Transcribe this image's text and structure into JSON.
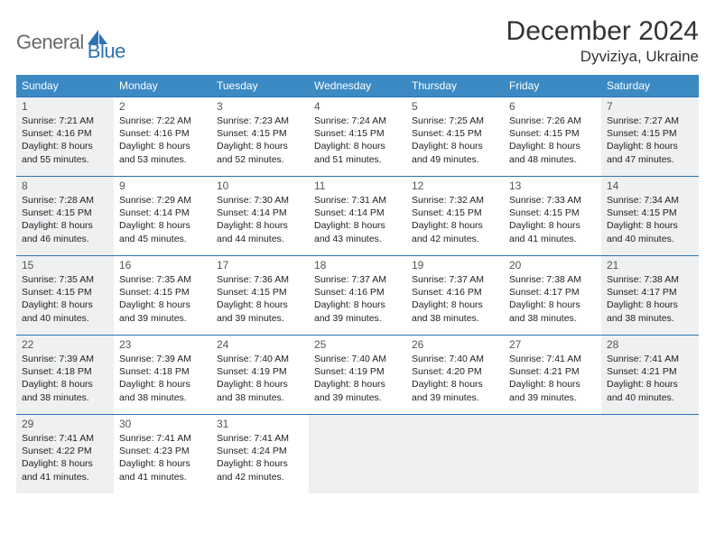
{
  "logo": {
    "text1": "General",
    "text2": "Blue"
  },
  "title": "December 2024",
  "location": "Dyviziya, Ukraine",
  "header_bg": "#3b8ac4",
  "header_fg": "#ffffff",
  "border_color": "#2d72b5",
  "shaded_bg": "#eef0f2",
  "weekdays": [
    "Sunday",
    "Monday",
    "Tuesday",
    "Wednesday",
    "Thursday",
    "Friday",
    "Saturday"
  ],
  "weeks": [
    [
      {
        "day": "1",
        "shaded": true,
        "sunrise": "Sunrise: 7:21 AM",
        "sunset": "Sunset: 4:16 PM",
        "dl1": "Daylight: 8 hours",
        "dl2": "and 55 minutes."
      },
      {
        "day": "2",
        "shaded": false,
        "sunrise": "Sunrise: 7:22 AM",
        "sunset": "Sunset: 4:16 PM",
        "dl1": "Daylight: 8 hours",
        "dl2": "and 53 minutes."
      },
      {
        "day": "3",
        "shaded": false,
        "sunrise": "Sunrise: 7:23 AM",
        "sunset": "Sunset: 4:15 PM",
        "dl1": "Daylight: 8 hours",
        "dl2": "and 52 minutes."
      },
      {
        "day": "4",
        "shaded": false,
        "sunrise": "Sunrise: 7:24 AM",
        "sunset": "Sunset: 4:15 PM",
        "dl1": "Daylight: 8 hours",
        "dl2": "and 51 minutes."
      },
      {
        "day": "5",
        "shaded": false,
        "sunrise": "Sunrise: 7:25 AM",
        "sunset": "Sunset: 4:15 PM",
        "dl1": "Daylight: 8 hours",
        "dl2": "and 49 minutes."
      },
      {
        "day": "6",
        "shaded": false,
        "sunrise": "Sunrise: 7:26 AM",
        "sunset": "Sunset: 4:15 PM",
        "dl1": "Daylight: 8 hours",
        "dl2": "and 48 minutes."
      },
      {
        "day": "7",
        "shaded": true,
        "sunrise": "Sunrise: 7:27 AM",
        "sunset": "Sunset: 4:15 PM",
        "dl1": "Daylight: 8 hours",
        "dl2": "and 47 minutes."
      }
    ],
    [
      {
        "day": "8",
        "shaded": true,
        "sunrise": "Sunrise: 7:28 AM",
        "sunset": "Sunset: 4:15 PM",
        "dl1": "Daylight: 8 hours",
        "dl2": "and 46 minutes."
      },
      {
        "day": "9",
        "shaded": false,
        "sunrise": "Sunrise: 7:29 AM",
        "sunset": "Sunset: 4:14 PM",
        "dl1": "Daylight: 8 hours",
        "dl2": "and 45 minutes."
      },
      {
        "day": "10",
        "shaded": false,
        "sunrise": "Sunrise: 7:30 AM",
        "sunset": "Sunset: 4:14 PM",
        "dl1": "Daylight: 8 hours",
        "dl2": "and 44 minutes."
      },
      {
        "day": "11",
        "shaded": false,
        "sunrise": "Sunrise: 7:31 AM",
        "sunset": "Sunset: 4:14 PM",
        "dl1": "Daylight: 8 hours",
        "dl2": "and 43 minutes."
      },
      {
        "day": "12",
        "shaded": false,
        "sunrise": "Sunrise: 7:32 AM",
        "sunset": "Sunset: 4:15 PM",
        "dl1": "Daylight: 8 hours",
        "dl2": "and 42 minutes."
      },
      {
        "day": "13",
        "shaded": false,
        "sunrise": "Sunrise: 7:33 AM",
        "sunset": "Sunset: 4:15 PM",
        "dl1": "Daylight: 8 hours",
        "dl2": "and 41 minutes."
      },
      {
        "day": "14",
        "shaded": true,
        "sunrise": "Sunrise: 7:34 AM",
        "sunset": "Sunset: 4:15 PM",
        "dl1": "Daylight: 8 hours",
        "dl2": "and 40 minutes."
      }
    ],
    [
      {
        "day": "15",
        "shaded": true,
        "sunrise": "Sunrise: 7:35 AM",
        "sunset": "Sunset: 4:15 PM",
        "dl1": "Daylight: 8 hours",
        "dl2": "and 40 minutes."
      },
      {
        "day": "16",
        "shaded": false,
        "sunrise": "Sunrise: 7:35 AM",
        "sunset": "Sunset: 4:15 PM",
        "dl1": "Daylight: 8 hours",
        "dl2": "and 39 minutes."
      },
      {
        "day": "17",
        "shaded": false,
        "sunrise": "Sunrise: 7:36 AM",
        "sunset": "Sunset: 4:15 PM",
        "dl1": "Daylight: 8 hours",
        "dl2": "and 39 minutes."
      },
      {
        "day": "18",
        "shaded": false,
        "sunrise": "Sunrise: 7:37 AM",
        "sunset": "Sunset: 4:16 PM",
        "dl1": "Daylight: 8 hours",
        "dl2": "and 39 minutes."
      },
      {
        "day": "19",
        "shaded": false,
        "sunrise": "Sunrise: 7:37 AM",
        "sunset": "Sunset: 4:16 PM",
        "dl1": "Daylight: 8 hours",
        "dl2": "and 38 minutes."
      },
      {
        "day": "20",
        "shaded": false,
        "sunrise": "Sunrise: 7:38 AM",
        "sunset": "Sunset: 4:17 PM",
        "dl1": "Daylight: 8 hours",
        "dl2": "and 38 minutes."
      },
      {
        "day": "21",
        "shaded": true,
        "sunrise": "Sunrise: 7:38 AM",
        "sunset": "Sunset: 4:17 PM",
        "dl1": "Daylight: 8 hours",
        "dl2": "and 38 minutes."
      }
    ],
    [
      {
        "day": "22",
        "shaded": true,
        "sunrise": "Sunrise: 7:39 AM",
        "sunset": "Sunset: 4:18 PM",
        "dl1": "Daylight: 8 hours",
        "dl2": "and 38 minutes."
      },
      {
        "day": "23",
        "shaded": false,
        "sunrise": "Sunrise: 7:39 AM",
        "sunset": "Sunset: 4:18 PM",
        "dl1": "Daylight: 8 hours",
        "dl2": "and 38 minutes."
      },
      {
        "day": "24",
        "shaded": false,
        "sunrise": "Sunrise: 7:40 AM",
        "sunset": "Sunset: 4:19 PM",
        "dl1": "Daylight: 8 hours",
        "dl2": "and 38 minutes."
      },
      {
        "day": "25",
        "shaded": false,
        "sunrise": "Sunrise: 7:40 AM",
        "sunset": "Sunset: 4:19 PM",
        "dl1": "Daylight: 8 hours",
        "dl2": "and 39 minutes."
      },
      {
        "day": "26",
        "shaded": false,
        "sunrise": "Sunrise: 7:40 AM",
        "sunset": "Sunset: 4:20 PM",
        "dl1": "Daylight: 8 hours",
        "dl2": "and 39 minutes."
      },
      {
        "day": "27",
        "shaded": false,
        "sunrise": "Sunrise: 7:41 AM",
        "sunset": "Sunset: 4:21 PM",
        "dl1": "Daylight: 8 hours",
        "dl2": "and 39 minutes."
      },
      {
        "day": "28",
        "shaded": true,
        "sunrise": "Sunrise: 7:41 AM",
        "sunset": "Sunset: 4:21 PM",
        "dl1": "Daylight: 8 hours",
        "dl2": "and 40 minutes."
      }
    ],
    [
      {
        "day": "29",
        "shaded": true,
        "sunrise": "Sunrise: 7:41 AM",
        "sunset": "Sunset: 4:22 PM",
        "dl1": "Daylight: 8 hours",
        "dl2": "and 41 minutes."
      },
      {
        "day": "30",
        "shaded": false,
        "sunrise": "Sunrise: 7:41 AM",
        "sunset": "Sunset: 4:23 PM",
        "dl1": "Daylight: 8 hours",
        "dl2": "and 41 minutes."
      },
      {
        "day": "31",
        "shaded": false,
        "sunrise": "Sunrise: 7:41 AM",
        "sunset": "Sunset: 4:24 PM",
        "dl1": "Daylight: 8 hours",
        "dl2": "and 42 minutes."
      },
      {
        "day": "",
        "shaded": true,
        "empty": true
      },
      {
        "day": "",
        "shaded": true,
        "empty": true
      },
      {
        "day": "",
        "shaded": true,
        "empty": true
      },
      {
        "day": "",
        "shaded": true,
        "empty": true
      }
    ]
  ]
}
